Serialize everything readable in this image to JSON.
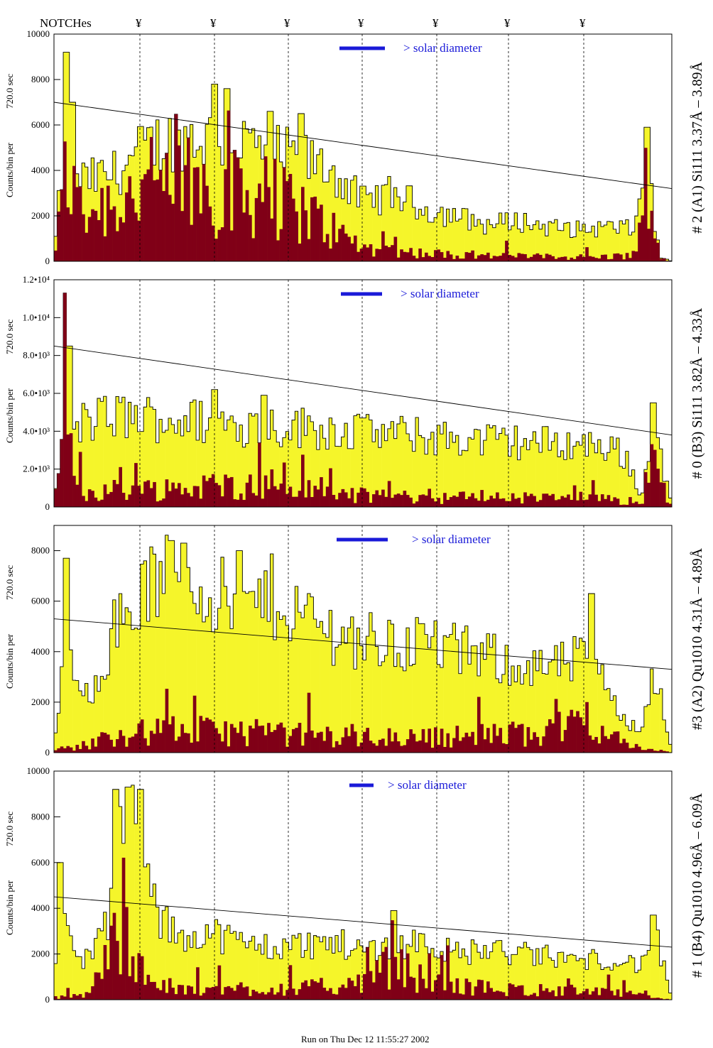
{
  "header": {
    "notches_label": "NOTCHes",
    "notch_symbol": "¥"
  },
  "footer": {
    "run_text": "Run on Thu Dec 12 11:55:27 2002"
  },
  "colors": {
    "fill": "#f5f52a",
    "dark": "#800017",
    "solar": "#1a1ad8",
    "axis": "#000000"
  },
  "chart_data": [
    {
      "type": "bar",
      "panel": "A1",
      "side_label": "# 2 (A1) Si111  3.37Å – 3.89Å",
      "ylabel": "Counts/bin per",
      "ylabel2": "720.0 sec",
      "ylim": [
        0,
        10000
      ],
      "yticks": [
        "0",
        "2000",
        "4000",
        "6000",
        "8000",
        "10000"
      ],
      "solar_label": "> solar diameter",
      "trend_line": [
        7000,
        3200
      ],
      "profile": [
        [
          0,
          300
        ],
        [
          0.02,
          6000
        ],
        [
          0.035,
          4000
        ],
        [
          0.05,
          3500
        ],
        [
          0.1,
          3900
        ],
        [
          0.15,
          5000
        ],
        [
          0.2,
          5500
        ],
        [
          0.26,
          5400
        ],
        [
          0.3,
          5300
        ],
        [
          0.35,
          4800
        ],
        [
          0.4,
          4500
        ],
        [
          0.45,
          4000
        ],
        [
          0.5,
          2600
        ],
        [
          0.55,
          3000
        ],
        [
          0.6,
          2300
        ],
        [
          0.65,
          2000
        ],
        [
          0.7,
          1600
        ],
        [
          0.75,
          1800
        ],
        [
          0.8,
          1500
        ],
        [
          0.85,
          1400
        ],
        [
          0.9,
          1500
        ],
        [
          0.94,
          1400
        ],
        [
          0.96,
          4500
        ],
        [
          0.98,
          200
        ],
        [
          1,
          0
        ]
      ],
      "dark_profile": [
        [
          0,
          100
        ],
        [
          0.02,
          4500
        ],
        [
          0.035,
          2500
        ],
        [
          0.05,
          2300
        ],
        [
          0.1,
          2700
        ],
        [
          0.15,
          3200
        ],
        [
          0.2,
          3400
        ],
        [
          0.26,
          3200
        ],
        [
          0.3,
          3100
        ],
        [
          0.35,
          2800
        ],
        [
          0.4,
          2300
        ],
        [
          0.45,
          1400
        ],
        [
          0.5,
          600
        ],
        [
          0.55,
          500
        ],
        [
          0.6,
          350
        ],
        [
          0.65,
          300
        ],
        [
          0.7,
          250
        ],
        [
          0.75,
          250
        ],
        [
          0.8,
          200
        ],
        [
          0.85,
          200
        ],
        [
          0.9,
          200
        ],
        [
          0.94,
          300
        ],
        [
          0.96,
          3500
        ],
        [
          0.98,
          100
        ],
        [
          1,
          0
        ]
      ],
      "spikes": [
        [
          0.02,
          9200
        ],
        [
          0.03,
          7000
        ],
        [
          0.26,
          7800
        ],
        [
          0.28,
          7600
        ],
        [
          0.35,
          6600
        ],
        [
          0.4,
          6500
        ],
        [
          0.96,
          5900
        ]
      ]
    },
    {
      "type": "bar",
      "panel": "B3",
      "side_label": "# 0 (B3) Si111  3.82Å – 4.33Å",
      "ylabel": "Counts/bin per",
      "ylabel2": "720.0 sec",
      "ylim": [
        0,
        12000
      ],
      "yticks": [
        "0",
        "2.0•10³",
        "4.0•10³",
        "6.0•10³",
        "8.0•10³",
        "1.0•10⁴",
        "1.2•10⁴"
      ],
      "solar_label": "> solar diameter",
      "trend_line": [
        8500,
        3800
      ],
      "profile": [
        [
          0,
          200
        ],
        [
          0.02,
          5000
        ],
        [
          0.03,
          4000
        ],
        [
          0.05,
          4500
        ],
        [
          0.1,
          4800
        ],
        [
          0.2,
          4600
        ],
        [
          0.3,
          4400
        ],
        [
          0.4,
          4200
        ],
        [
          0.5,
          4000
        ],
        [
          0.6,
          3700
        ],
        [
          0.7,
          3500
        ],
        [
          0.8,
          3400
        ],
        [
          0.9,
          3200
        ],
        [
          0.93,
          2500
        ],
        [
          0.95,
          300
        ],
        [
          0.97,
          4500
        ],
        [
          1,
          0
        ]
      ],
      "dark_profile": [
        [
          0,
          100
        ],
        [
          0.02,
          5500
        ],
        [
          0.03,
          1500
        ],
        [
          0.05,
          800
        ],
        [
          0.1,
          900
        ],
        [
          0.2,
          1000
        ],
        [
          0.3,
          1200
        ],
        [
          0.4,
          900
        ],
        [
          0.5,
          600
        ],
        [
          0.6,
          500
        ],
        [
          0.7,
          500
        ],
        [
          0.8,
          450
        ],
        [
          0.9,
          400
        ],
        [
          0.95,
          100
        ],
        [
          0.97,
          3000
        ],
        [
          1,
          0
        ]
      ],
      "spikes": [
        [
          0.02,
          11300
        ],
        [
          0.025,
          8500
        ],
        [
          0.26,
          6200
        ],
        [
          0.34,
          5900
        ],
        [
          0.5,
          4700
        ],
        [
          0.97,
          5500
        ]
      ]
    },
    {
      "type": "bar",
      "panel": "A2",
      "side_label": "#3 (A2) Qu1010  4.31Å – 4.89Å",
      "ylabel": "Counts/bin per",
      "ylabel2": "720.0 sec",
      "ylim": [
        0,
        9000
      ],
      "yticks": [
        "0",
        "2000",
        "4000",
        "6000",
        "8000"
      ],
      "solar_label": "> solar diameter",
      "trend_line": [
        5300,
        3300
      ],
      "profile": [
        [
          0,
          200
        ],
        [
          0.02,
          4500
        ],
        [
          0.04,
          2000
        ],
        [
          0.06,
          2500
        ],
        [
          0.1,
          5000
        ],
        [
          0.15,
          6500
        ],
        [
          0.2,
          7000
        ],
        [
          0.25,
          6500
        ],
        [
          0.3,
          5500
        ],
        [
          0.35,
          6200
        ],
        [
          0.4,
          5500
        ],
        [
          0.45,
          4800
        ],
        [
          0.5,
          4500
        ],
        [
          0.55,
          4200
        ],
        [
          0.6,
          4500
        ],
        [
          0.65,
          4000
        ],
        [
          0.7,
          3800
        ],
        [
          0.75,
          3500
        ],
        [
          0.8,
          3300
        ],
        [
          0.85,
          3700
        ],
        [
          0.9,
          2500
        ],
        [
          0.93,
          1200
        ],
        [
          0.95,
          800
        ],
        [
          0.97,
          3500
        ],
        [
          1,
          0
        ]
      ],
      "dark_profile": [
        [
          0,
          100
        ],
        [
          0.05,
          300
        ],
        [
          0.1,
          700
        ],
        [
          0.2,
          900
        ],
        [
          0.3,
          800
        ],
        [
          0.4,
          700
        ],
        [
          0.5,
          600
        ],
        [
          0.6,
          600
        ],
        [
          0.7,
          700
        ],
        [
          0.8,
          800
        ],
        [
          0.87,
          1500
        ],
        [
          0.9,
          600
        ],
        [
          0.95,
          200
        ],
        [
          1,
          0
        ]
      ],
      "spikes": [
        [
          0.02,
          7700
        ],
        [
          0.19,
          8400
        ],
        [
          0.21,
          8300
        ],
        [
          0.3,
          8000
        ],
        [
          0.87,
          6300
        ]
      ]
    },
    {
      "type": "bar",
      "panel": "B4",
      "side_label": "# 1 (B4) Qu1010 4.96Å – 6.09Å",
      "ylabel": "Counts/bin per",
      "ylabel2": "720.0 sec",
      "ylim": [
        0,
        10000
      ],
      "yticks": [
        "0",
        "2000",
        "4000",
        "6000",
        "8000",
        "10000"
      ],
      "solar_label": "> solar diameter",
      "trend_line": [
        4500,
        2300
      ],
      "profile": [
        [
          0,
          300
        ],
        [
          0.01,
          5000
        ],
        [
          0.03,
          2000
        ],
        [
          0.05,
          1800
        ],
        [
          0.07,
          2500
        ],
        [
          0.09,
          3500
        ],
        [
          0.11,
          7500
        ],
        [
          0.13,
          7800
        ],
        [
          0.15,
          5500
        ],
        [
          0.17,
          3500
        ],
        [
          0.2,
          2800
        ],
        [
          0.25,
          3000
        ],
        [
          0.3,
          2500
        ],
        [
          0.35,
          2300
        ],
        [
          0.4,
          2400
        ],
        [
          0.45,
          2500
        ],
        [
          0.5,
          2200
        ],
        [
          0.55,
          2400
        ],
        [
          0.6,
          2600
        ],
        [
          0.65,
          2000
        ],
        [
          0.7,
          2200
        ],
        [
          0.75,
          2000
        ],
        [
          0.8,
          1900
        ],
        [
          0.85,
          1700
        ],
        [
          0.9,
          1800
        ],
        [
          0.95,
          1500
        ],
        [
          0.97,
          3200
        ],
        [
          1,
          0
        ]
      ],
      "dark_profile": [
        [
          0,
          100
        ],
        [
          0.05,
          200
        ],
        [
          0.1,
          2500
        ],
        [
          0.12,
          3000
        ],
        [
          0.14,
          2000
        ],
        [
          0.16,
          600
        ],
        [
          0.2,
          400
        ],
        [
          0.3,
          500
        ],
        [
          0.4,
          500
        ],
        [
          0.5,
          700
        ],
        [
          0.55,
          1600
        ],
        [
          0.6,
          800
        ],
        [
          0.7,
          500
        ],
        [
          0.8,
          400
        ],
        [
          0.9,
          300
        ],
        [
          0.95,
          200
        ],
        [
          1,
          0
        ]
      ],
      "spikes": [
        [
          0.01,
          6000
        ],
        [
          0.1,
          9200
        ],
        [
          0.12,
          9300
        ],
        [
          0.14,
          9200
        ],
        [
          0.55,
          3900
        ],
        [
          0.97,
          3700
        ]
      ]
    }
  ]
}
